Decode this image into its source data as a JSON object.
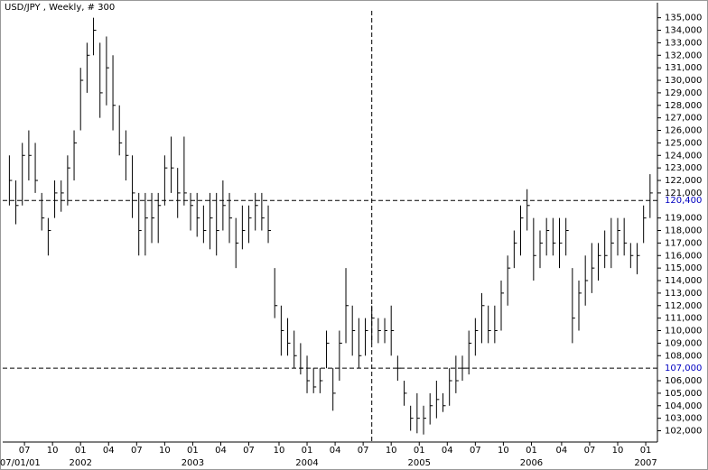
{
  "chart_data": {
    "type": "ohlc",
    "title": "USD/JPY , Weekly, # 300",
    "x": [
      0,
      3,
      6,
      9,
      12,
      15,
      18,
      21,
      24,
      27,
      30,
      33,
      36,
      39,
      42,
      45,
      48,
      51,
      54,
      57,
      60,
      63,
      66,
      69,
      72,
      75,
      78,
      81,
      84,
      87,
      90,
      93,
      96,
      99,
      102,
      105,
      108,
      111,
      114,
      117,
      120,
      123,
      126,
      129,
      132,
      135,
      138,
      141,
      144,
      147,
      150,
      153,
      156,
      159,
      162,
      165,
      168,
      171,
      174,
      177,
      180,
      183,
      186,
      189,
      192,
      195,
      198,
      201,
      204,
      207,
      210,
      213,
      216,
      219,
      222,
      225,
      228,
      231,
      234,
      237,
      240,
      243,
      246,
      249,
      252,
      255,
      258,
      261,
      264,
      267,
      270,
      273,
      276,
      279,
      282,
      285,
      288,
      291,
      294,
      297
    ],
    "series": [
      {
        "color": "#000000",
        "high": [
          124,
          122,
          125,
          126,
          125,
          121,
          119,
          122,
          122,
          124,
          126,
          131,
          133,
          135,
          133,
          133.5,
          132,
          128,
          126,
          124,
          121,
          121,
          121,
          121,
          124,
          125.5,
          123,
          125.5,
          121,
          121,
          120,
          121,
          121,
          122,
          121,
          119,
          120,
          120,
          121,
          121,
          120,
          115,
          112,
          111,
          110,
          109,
          108,
          107,
          107,
          110,
          107,
          110,
          115,
          112,
          111,
          111,
          112,
          111,
          111,
          112,
          108,
          106,
          104,
          105,
          104,
          105,
          106,
          105,
          107,
          108,
          108,
          110,
          111,
          113,
          112,
          112,
          114,
          116,
          118,
          120,
          121.3,
          119,
          118,
          119,
          119,
          119,
          119,
          115,
          114,
          116,
          117,
          117,
          118,
          119,
          119,
          119,
          117,
          117,
          120,
          122.5
        ],
        "low": [
          120,
          118.5,
          120,
          122,
          121,
          118,
          116,
          119,
          119.5,
          120,
          122,
          126,
          129,
          132,
          127,
          128,
          126,
          124,
          122,
          119,
          116,
          116,
          117,
          117,
          120,
          121,
          119,
          120,
          118,
          117.5,
          117,
          116.5,
          116,
          118,
          117,
          115,
          116.5,
          117,
          118,
          118,
          117,
          111,
          108,
          108,
          107,
          106.5,
          105,
          105,
          105,
          107,
          103.6,
          106,
          109,
          108,
          107,
          108,
          109,
          109,
          109,
          108,
          106,
          104,
          102,
          101.8,
          101.7,
          102.5,
          103,
          103.5,
          104,
          105,
          106,
          106.5,
          108,
          109,
          109,
          109,
          110,
          112,
          115,
          116,
          118,
          114,
          115,
          116,
          116,
          115,
          116,
          109,
          110,
          112,
          113,
          114,
          115,
          115,
          116,
          116,
          115,
          114.5,
          117,
          119
        ],
        "close": [
          122,
          120,
          124,
          124,
          122,
          119,
          118,
          121,
          121,
          123,
          125,
          130,
          132,
          134,
          129,
          131,
          128,
          125,
          124,
          121,
          118,
          119,
          119,
          120,
          123,
          123,
          121,
          121,
          120,
          119,
          118,
          119,
          118,
          120,
          119,
          117,
          118,
          119,
          120,
          119,
          118,
          112,
          110,
          109,
          108,
          107,
          106,
          105.5,
          106,
          109,
          105,
          109,
          112,
          110,
          108,
          110,
          111,
          110,
          110,
          110,
          107,
          105,
          103,
          103,
          103,
          104,
          104.5,
          104,
          106,
          106,
          107,
          109,
          110,
          112,
          110,
          110,
          113,
          115,
          117,
          119,
          120,
          116,
          117,
          118,
          117,
          117,
          118,
          111,
          113,
          114,
          115,
          116,
          116,
          117,
          118,
          117,
          116,
          116,
          119,
          121
        ]
      }
    ],
    "ylim": [
      101.1,
      136.2
    ],
    "yticks": [
      {
        "value": 102,
        "label": "102,000"
      },
      {
        "value": 103,
        "label": "103,000"
      },
      {
        "value": 104,
        "label": "104,000"
      },
      {
        "value": 105,
        "label": "105,000"
      },
      {
        "value": 106,
        "label": "106,000"
      },
      {
        "value": 108,
        "label": "108,000"
      },
      {
        "value": 109,
        "label": "109,000"
      },
      {
        "value": 110,
        "label": "110,000"
      },
      {
        "value": 111,
        "label": "111,000"
      },
      {
        "value": 112,
        "label": "112,000"
      },
      {
        "value": 113,
        "label": "113,000"
      },
      {
        "value": 114,
        "label": "114,000"
      },
      {
        "value": 115,
        "label": "115,000"
      },
      {
        "value": 116,
        "label": "116,000"
      },
      {
        "value": 117,
        "label": "117,000"
      },
      {
        "value": 118,
        "label": "118,000"
      },
      {
        "value": 119,
        "label": "119,000"
      },
      {
        "value": 121,
        "label": "121,000"
      },
      {
        "value": 122,
        "label": "122,000"
      },
      {
        "value": 123,
        "label": "123,000"
      },
      {
        "value": 124,
        "label": "124,000"
      },
      {
        "value": 125,
        "label": "125,000"
      },
      {
        "value": 126,
        "label": "126,000"
      },
      {
        "value": 127,
        "label": "127,000"
      },
      {
        "value": 128,
        "label": "128,000"
      },
      {
        "value": 129,
        "label": "129,000"
      },
      {
        "value": 130,
        "label": "130,000"
      },
      {
        "value": 131,
        "label": "131,000"
      },
      {
        "value": 132,
        "label": "132,000"
      },
      {
        "value": 133,
        "label": "133,000"
      },
      {
        "value": 134,
        "label": "134,000"
      },
      {
        "value": 135,
        "label": "135,000"
      }
    ],
    "reference_lines": [
      {
        "value": 120.4,
        "label": "120,400"
      },
      {
        "value": 107,
        "label": "107,000"
      }
    ],
    "xlim": [
      -1,
      300
    ],
    "xticks": [
      {
        "value": 7,
        "label": "07"
      },
      {
        "value": 20,
        "label": "10"
      },
      {
        "value": 33,
        "label": "01"
      },
      {
        "value": 46,
        "label": "04"
      },
      {
        "value": 59,
        "label": "07"
      },
      {
        "value": 72,
        "label": "10"
      },
      {
        "value": 85,
        "label": "01"
      },
      {
        "value": 98,
        "label": "04"
      },
      {
        "value": 111,
        "label": "07"
      },
      {
        "value": 125,
        "label": "10"
      },
      {
        "value": 138,
        "label": "01"
      },
      {
        "value": 151,
        "label": "04"
      },
      {
        "value": 164,
        "label": "07"
      },
      {
        "value": 177,
        "label": "10"
      },
      {
        "value": 190,
        "label": "01"
      },
      {
        "value": 203,
        "label": "04"
      },
      {
        "value": 216,
        "label": "07"
      },
      {
        "value": 229,
        "label": "10"
      },
      {
        "value": 242,
        "label": "01"
      },
      {
        "value": 256,
        "label": "04"
      },
      {
        "value": 269,
        "label": "07"
      },
      {
        "value": 282,
        "label": "10"
      },
      {
        "value": 295,
        "label": "01"
      }
    ],
    "year_ticks": [
      {
        "value": 5,
        "label": "07/01/01"
      },
      {
        "value": 33,
        "label": "2002"
      },
      {
        "value": 85,
        "label": "2003"
      },
      {
        "value": 138,
        "label": "2004"
      },
      {
        "value": 190,
        "label": "2005"
      },
      {
        "value": 242,
        "label": "2006"
      },
      {
        "value": 295,
        "label": "2007"
      }
    ],
    "cursor_x": 168
  }
}
